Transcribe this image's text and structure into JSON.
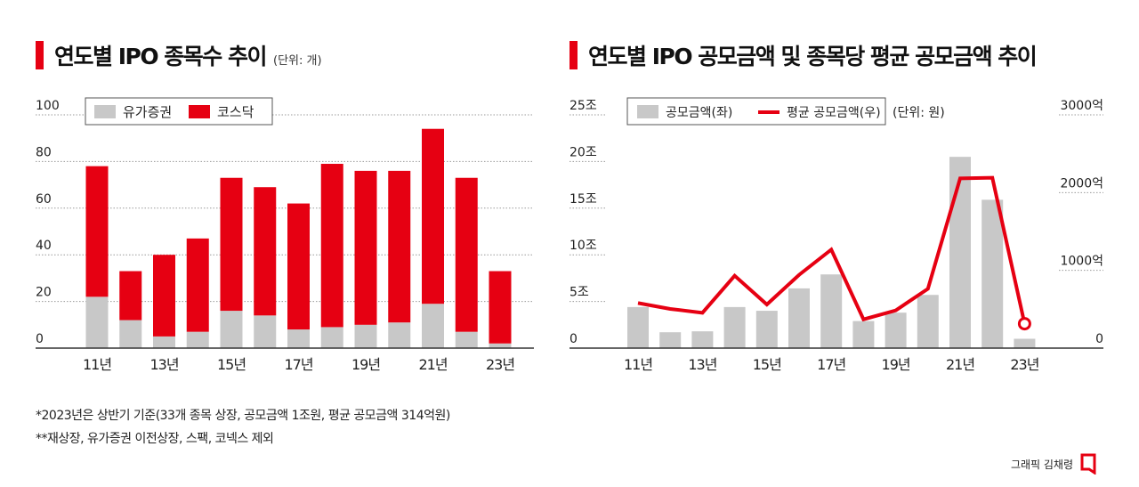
{
  "chart_data": [
    {
      "type": "bar",
      "stacked": true,
      "title": "연도별 IPO 종목수 추이",
      "unit": "(단위: 개)",
      "categories": [
        "11년",
        "12년",
        "13년",
        "14년",
        "15년",
        "16년",
        "17년",
        "18년",
        "19년",
        "20년",
        "21년",
        "22년",
        "23년"
      ],
      "tick_labels": [
        "11년",
        "13년",
        "15년",
        "17년",
        "19년",
        "21년",
        "23년"
      ],
      "y_ticks": [
        "0",
        "20",
        "40",
        "60",
        "80",
        "100"
      ],
      "ylim": [
        0,
        100
      ],
      "grid": true,
      "legend": "top-left",
      "series": [
        {
          "name": "유가증권",
          "color": "#c8c8c8",
          "values": [
            22,
            12,
            5,
            7,
            16,
            14,
            8,
            9,
            10,
            11,
            19,
            7,
            2
          ]
        },
        {
          "name": "코스닥",
          "color": "#e60012",
          "values": [
            56,
            21,
            35,
            40,
            57,
            55,
            54,
            70,
            66,
            65,
            75,
            66,
            31
          ]
        }
      ]
    },
    {
      "type": "bar+line",
      "title": "연도별 IPO 공모금액 및 종목당 평균 공모금액 추이",
      "unit": "(단위: 원)",
      "categories": [
        "11년",
        "12년",
        "13년",
        "14년",
        "15년",
        "16년",
        "17년",
        "18년",
        "19년",
        "20년",
        "21년",
        "22년",
        "23년"
      ],
      "tick_labels": [
        "11년",
        "13년",
        "15년",
        "17년",
        "19년",
        "21년",
        "23년"
      ],
      "y_left_ticks": [
        "0",
        "5조",
        "10조",
        "15조",
        "20조",
        "25조"
      ],
      "y_right_ticks": [
        "0",
        "1000억",
        "2000억",
        "3000억"
      ],
      "ylim_left": [
        0,
        25
      ],
      "ylim_right": [
        0,
        3000
      ],
      "grid": true,
      "legend": "top-left",
      "series": [
        {
          "name": "공모금액(좌)",
          "axis": "left",
          "unit": "조원",
          "color": "#c8c8c8",
          "values": [
            4.4,
            1.7,
            1.8,
            4.4,
            4.0,
            6.4,
            7.9,
            2.9,
            3.8,
            5.7,
            20.5,
            15.9,
            1.0
          ]
        },
        {
          "name": "평균 공모금액(우)",
          "axis": "right",
          "unit": "억원",
          "color": "#e60012",
          "values": [
            580,
            504,
            454,
            931,
            561,
            942,
            1267,
            370,
            485,
            763,
            2183,
            2191,
            314
          ]
        }
      ]
    }
  ],
  "notes": [
    "*2023년은 상반기 기준(33개 종목 상장, 공모금액 1조원, 평균 공모금액 314억원)",
    "**재상장, 유가증권 이전상장, 스팩, 코넥스 제외"
  ],
  "credit": "그래픽 김채령"
}
